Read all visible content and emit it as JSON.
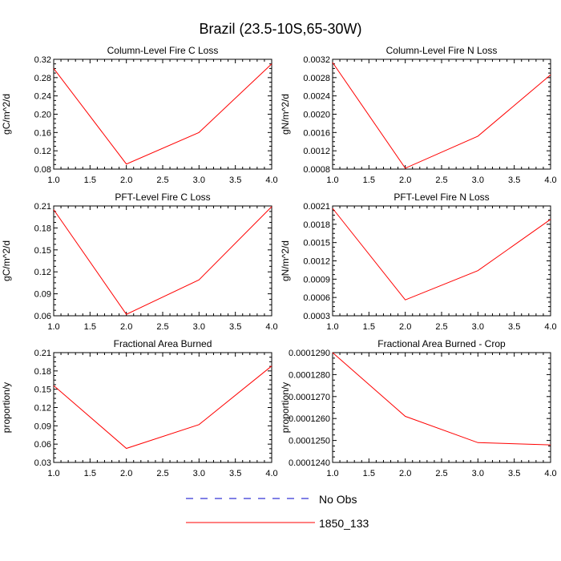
{
  "figure": {
    "title": "Brazil (23.5-10S,65-30W)"
  },
  "legend": {
    "entries": [
      {
        "label": "No Obs",
        "color": "#0000cc",
        "dash": true
      },
      {
        "label": "1850_133",
        "color": "#ff0000",
        "dash": false
      }
    ]
  },
  "chart_data": [
    {
      "type": "line",
      "title": "Column-Level Fire C Loss",
      "xlabel": "",
      "ylabel": "gC/m^2/d",
      "xlim": [
        1.0,
        4.0
      ],
      "ylim": [
        0.08,
        0.32
      ],
      "xticks": [
        "1.0",
        "1.5",
        "2.0",
        "2.5",
        "3.0",
        "3.5",
        "4.0"
      ],
      "yticks": [
        "0.08",
        "0.12",
        "0.16",
        "0.20",
        "0.24",
        "0.28",
        "0.32"
      ],
      "series": [
        {
          "name": "1850_133",
          "x": [
            1,
            2,
            3,
            4
          ],
          "values": [
            0.3,
            0.091,
            0.16,
            0.31
          ]
        }
      ]
    },
    {
      "type": "line",
      "title": "Column-Level Fire N Loss",
      "xlabel": "",
      "ylabel": "gN/m^2/d",
      "xlim": [
        1.0,
        4.0
      ],
      "ylim": [
        0.0008,
        0.0032
      ],
      "xticks": [
        "1.0",
        "1.5",
        "2.0",
        "2.5",
        "3.0",
        "3.5",
        "4.0"
      ],
      "yticks": [
        "0.0008",
        "0.0012",
        "0.0016",
        "0.0020",
        "0.0024",
        "0.0028",
        "0.0032"
      ],
      "series": [
        {
          "name": "1850_133",
          "x": [
            1,
            2,
            3,
            4
          ],
          "values": [
            0.00313,
            0.00082,
            0.00152,
            0.00286
          ]
        }
      ]
    },
    {
      "type": "line",
      "title": "PFT-Level Fire C Loss",
      "xlabel": "",
      "ylabel": "gC/m^2/d",
      "xlim": [
        1.0,
        4.0
      ],
      "ylim": [
        0.06,
        0.21
      ],
      "xticks": [
        "1.0",
        "1.5",
        "2.0",
        "2.5",
        "3.0",
        "3.5",
        "4.0"
      ],
      "yticks": [
        "0.06",
        "0.09",
        "0.12",
        "0.15",
        "0.18",
        "0.21"
      ],
      "series": [
        {
          "name": "1850_133",
          "x": [
            1,
            2,
            3,
            4
          ],
          "values": [
            0.205,
            0.062,
            0.109,
            0.209
          ]
        }
      ]
    },
    {
      "type": "line",
      "title": "PFT-Level Fire N Loss",
      "xlabel": "",
      "ylabel": "gN/m^2/d",
      "xlim": [
        1.0,
        4.0
      ],
      "ylim": [
        0.0003,
        0.0021
      ],
      "xticks": [
        "1.0",
        "1.5",
        "2.0",
        "2.5",
        "3.0",
        "3.5",
        "4.0"
      ],
      "yticks": [
        "0.0003",
        "0.0006",
        "0.0009",
        "0.0012",
        "0.0015",
        "0.0018",
        "0.0021"
      ],
      "series": [
        {
          "name": "1850_133",
          "x": [
            1,
            2,
            3,
            4
          ],
          "values": [
            0.00206,
            0.00056,
            0.00104,
            0.00188
          ]
        }
      ]
    },
    {
      "type": "line",
      "title": "Fractional Area Burned",
      "xlabel": "",
      "ylabel": "proportion/y",
      "xlim": [
        1.0,
        4.0
      ],
      "ylim": [
        0.03,
        0.21
      ],
      "xticks": [
        "1.0",
        "1.5",
        "2.0",
        "2.5",
        "3.0",
        "3.5",
        "4.0"
      ],
      "yticks": [
        "0.03",
        "0.06",
        "0.09",
        "0.12",
        "0.15",
        "0.18",
        "0.21"
      ],
      "series": [
        {
          "name": "1850_133",
          "x": [
            1,
            2,
            3,
            4
          ],
          "values": [
            0.156,
            0.053,
            0.092,
            0.188
          ]
        }
      ]
    },
    {
      "type": "line",
      "title": "Fractional Area Burned - Crop",
      "xlabel": "",
      "ylabel": "proportion/y",
      "xlim": [
        1.0,
        4.0
      ],
      "ylim": [
        0.000124,
        0.000129
      ],
      "xticks": [
        "1.0",
        "1.5",
        "2.0",
        "2.5",
        "3.0",
        "3.5",
        "4.0"
      ],
      "yticks": [
        "0.0001240",
        "0.0001250",
        "0.0001260",
        "0.0001270",
        "0.0001280",
        "0.0001290"
      ],
      "series": [
        {
          "name": "1850_133",
          "x": [
            1,
            2,
            3,
            4
          ],
          "values": [
            0.000129,
            0.0001261,
            0.0001249,
            0.0001248
          ]
        }
      ]
    }
  ]
}
